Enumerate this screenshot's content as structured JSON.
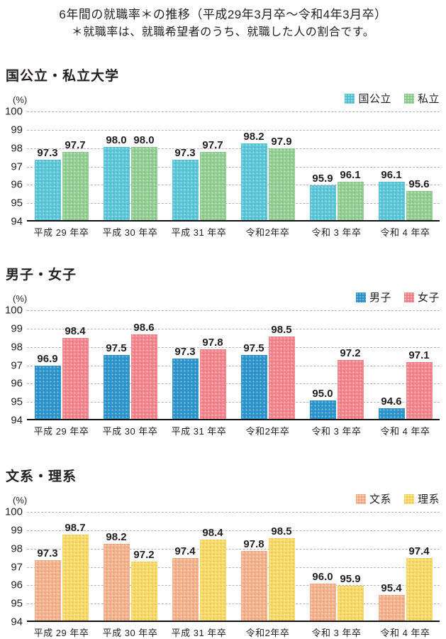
{
  "page": {
    "title": "6年間の就職率＊の推移（平成29年3月卒～令和4年3月卒）",
    "subtitle": "＊就職率は、就職希望者のうち、就職した人の割合です。"
  },
  "axis": {
    "unit_label": "(%)",
    "ticks": [
      100,
      99,
      98,
      97,
      96,
      95,
      94
    ],
    "ymin": 94,
    "ymax": 100
  },
  "colors": {
    "text": "#231f20",
    "gridline": "#b9b2b9",
    "axis_line": "#111111"
  },
  "chart_data": [
    {
      "type": "bar",
      "title": "国公立・私立大学",
      "ylabel": "(%)",
      "ylim": [
        94,
        100
      ],
      "grid": true,
      "legend_position": "top-right",
      "categories": [
        "平成 29 年卒",
        "平成 30 年卒",
        "平成 31 年卒",
        "令和2年卒",
        "令和 3 年卒",
        "令和 4 年卒"
      ],
      "series": [
        {
          "name": "国公立",
          "color": "#5bc7d8",
          "values": [
            97.3,
            98.0,
            97.3,
            98.2,
            95.9,
            96.1
          ]
        },
        {
          "name": "私立",
          "color": "#93cf93",
          "values": [
            97.7,
            98.0,
            97.7,
            97.9,
            96.1,
            95.6
          ]
        }
      ]
    },
    {
      "type": "bar",
      "title": "男子・女子",
      "ylabel": "(%)",
      "ylim": [
        94,
        100
      ],
      "grid": true,
      "legend_position": "top-right",
      "categories": [
        "平成 29 年卒",
        "平成 30 年卒",
        "平成 31 年卒",
        "令和2年卒",
        "令和 3 年卒",
        "令和 4 年卒"
      ],
      "series": [
        {
          "name": "男子",
          "color": "#2e96cc",
          "values": [
            96.9,
            97.5,
            97.3,
            97.5,
            95.0,
            94.6
          ]
        },
        {
          "name": "女子",
          "color": "#f4868e",
          "values": [
            98.4,
            98.6,
            97.8,
            98.5,
            97.2,
            97.1
          ]
        }
      ]
    },
    {
      "type": "bar",
      "title": "文系・理系",
      "ylabel": "(%)",
      "ylim": [
        94,
        100
      ],
      "grid": true,
      "legend_position": "top-right",
      "categories": [
        "平成 29 年卒",
        "平成 30 年卒",
        "平成 31 年卒",
        "令和2年卒",
        "令和 3 年卒",
        "令和 4 年卒"
      ],
      "series": [
        {
          "name": "文系",
          "color": "#f5b28c",
          "values": [
            97.3,
            98.2,
            97.4,
            97.8,
            96.0,
            95.4
          ]
        },
        {
          "name": "理系",
          "color": "#f8d966",
          "values": [
            98.7,
            97.2,
            98.4,
            98.5,
            95.9,
            97.4
          ]
        }
      ]
    }
  ]
}
